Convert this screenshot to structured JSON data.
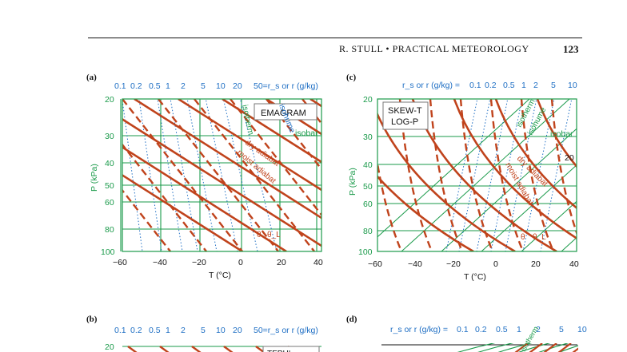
{
  "header": {
    "author_title": "R. STULL  •  PRACTICAL METEOROLOGY",
    "page_number": "123"
  },
  "colors": {
    "isobar_isotherm": "#1a9a4a",
    "dry_adiabat": "#c0431c",
    "moist_adiabat": "#c0431c",
    "mixing_ratio": "#1f6fc4",
    "axis": "#111111"
  },
  "panels": [
    {
      "id": "a",
      "label": "(a)",
      "diagram_title": "EMAGRAM",
      "top_label_prefix": "",
      "top_label_suffix": "50=r_s or r (g/kg)",
      "rs_values": [
        "0.1",
        "0.2",
        "0.5",
        "1",
        "2",
        "5",
        "10",
        "20"
      ],
      "x_ticks": [
        "−60",
        "−40",
        "−20",
        "0",
        "20",
        "40"
      ],
      "x_label": "T (°C)",
      "y_ticks": [
        "20",
        "30",
        "40",
        "50",
        "60",
        "80",
        "100"
      ],
      "y_label": "P (kPa)",
      "line_labels": [
        "isotherm",
        "isohume",
        "isobar",
        "dry adiabat",
        "moist adiabat",
        "θ",
        "θ_L"
      ]
    },
    {
      "id": "c",
      "label": "(c)",
      "diagram_title_1": "SKEW-T",
      "diagram_title_2": "LOG-P",
      "top_label_prefix": "r_s or r (g/kg) =",
      "rs_values": [
        "0.1",
        "0.2",
        "0.5",
        "1",
        "2",
        "5",
        "10"
      ],
      "x_ticks": [
        "−60",
        "−40",
        "−20",
        "0",
        "20",
        "40"
      ],
      "x_label": "T (°C)",
      "y_ticks": [
        "20",
        "30",
        "40",
        "50",
        "60",
        "80",
        "100"
      ],
      "y_label": "P (kPa)",
      "extra_label": "20",
      "line_labels": [
        "isotherm",
        "isohume",
        "isobar",
        "dry adiabat",
        "moist adiabat",
        "θ",
        "θ_L"
      ]
    },
    {
      "id": "b",
      "label": "(b)",
      "top_label_suffix": "50=r_s or r (g/kg)",
      "rs_values": [
        "0.1",
        "0.2",
        "0.5",
        "1",
        "2",
        "5",
        "10",
        "20"
      ],
      "y_ticks": [
        "20"
      ],
      "diagram_title_partial": "TEPHI"
    },
    {
      "id": "d",
      "label": "(d)",
      "top_label_prefix": "r_s or r (g/kg) =",
      "rs_values": [
        "0.1",
        "0.2",
        "0.5",
        "1",
        "2",
        "5",
        "10"
      ],
      "line_labels": [
        "isotherm"
      ]
    }
  ]
}
